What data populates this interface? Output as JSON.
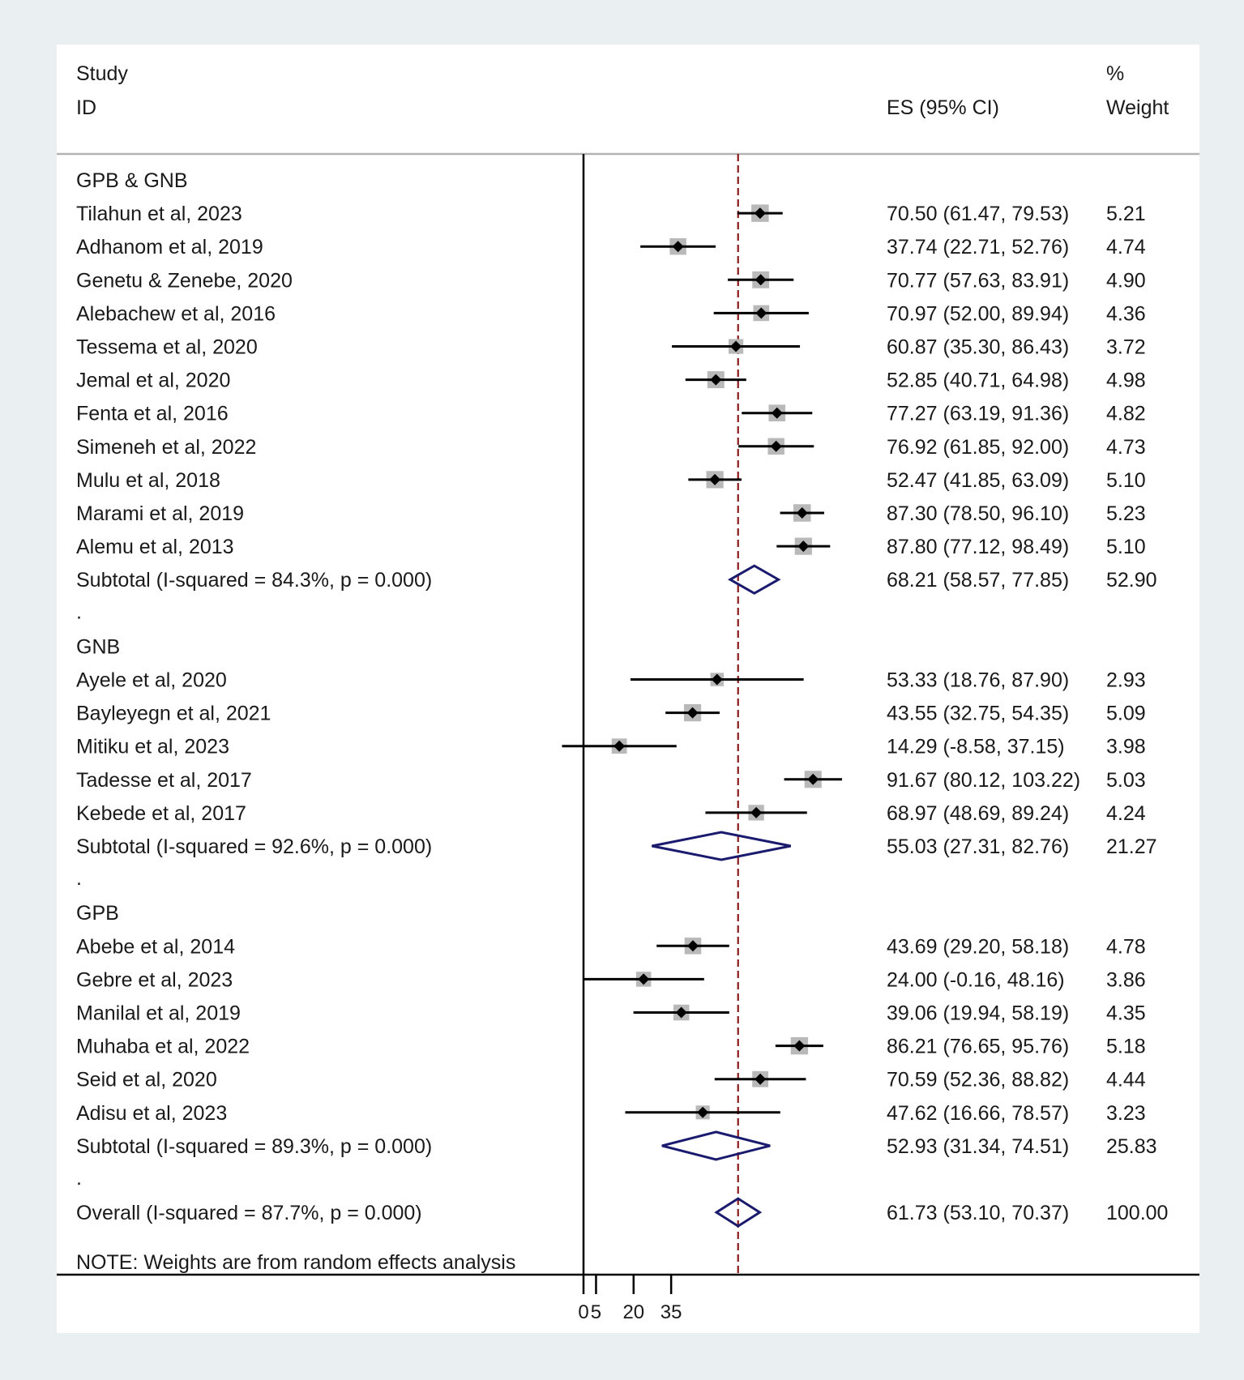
{
  "chart_data": {
    "type": "forest",
    "headers": {
      "study_line1": "Study",
      "study_line2": "ID",
      "es": "ES (95% CI)",
      "weight_line1": "%",
      "weight_line2": "Weight"
    },
    "x_ticks": [
      0,
      5,
      20,
      35
    ],
    "x_range": [
      0,
      100
    ],
    "overall_line": 61.73,
    "groups": [
      {
        "name": "GPB & GNB",
        "studies": [
          {
            "label": "Tilahun et al, 2023",
            "es": 70.5,
            "lo": 61.47,
            "hi": 79.53,
            "es_text": "70.50 (61.47, 79.53)",
            "weight": "5.21"
          },
          {
            "label": "Adhanom et al, 2019",
            "es": 37.74,
            "lo": 22.71,
            "hi": 52.76,
            "es_text": "37.74 (22.71, 52.76)",
            "weight": "4.74"
          },
          {
            "label": "Genetu & Zenebe, 2020",
            "es": 70.77,
            "lo": 57.63,
            "hi": 83.91,
            "es_text": "70.77 (57.63, 83.91)",
            "weight": "4.90"
          },
          {
            "label": "Alebachew et al, 2016",
            "es": 70.97,
            "lo": 52.0,
            "hi": 89.94,
            "es_text": "70.97 (52.00, 89.94)",
            "weight": "4.36"
          },
          {
            "label": "Tessema et al, 2020",
            "es": 60.87,
            "lo": 35.3,
            "hi": 86.43,
            "es_text": "60.87 (35.30, 86.43)",
            "weight": "3.72"
          },
          {
            "label": "Jemal et al, 2020",
            "es": 52.85,
            "lo": 40.71,
            "hi": 64.98,
            "es_text": "52.85 (40.71, 64.98)",
            "weight": "4.98"
          },
          {
            "label": "Fenta et al, 2016",
            "es": 77.27,
            "lo": 63.19,
            "hi": 91.36,
            "es_text": "77.27 (63.19, 91.36)",
            "weight": "4.82"
          },
          {
            "label": "Simeneh et al, 2022",
            "es": 76.92,
            "lo": 61.85,
            "hi": 92.0,
            "es_text": "76.92 (61.85, 92.00)",
            "weight": "4.73"
          },
          {
            "label": "Mulu et al, 2018",
            "es": 52.47,
            "lo": 41.85,
            "hi": 63.09,
            "es_text": "52.47 (41.85, 63.09)",
            "weight": "5.10"
          },
          {
            "label": "Marami et al, 2019",
            "es": 87.3,
            "lo": 78.5,
            "hi": 96.1,
            "es_text": "87.30 (78.50, 96.10)",
            "weight": "5.23"
          },
          {
            "label": "Alemu et al, 2013",
            "es": 87.8,
            "lo": 77.12,
            "hi": 98.49,
            "es_text": "87.80 (77.12, 98.49)",
            "weight": "5.10"
          }
        ],
        "subtotal": {
          "label": "Subtotal  (I-squared = 84.3%, p = 0.000)",
          "es": 68.21,
          "lo": 58.57,
          "hi": 77.85,
          "es_text": "68.21 (58.57, 77.85)",
          "weight": "52.90"
        }
      },
      {
        "name": "GNB",
        "studies": [
          {
            "label": "Ayele et al, 2020",
            "es": 53.33,
            "lo": 18.76,
            "hi": 87.9,
            "es_text": "53.33 (18.76, 87.90)",
            "weight": "2.93"
          },
          {
            "label": "Bayleyegn et al, 2021",
            "es": 43.55,
            "lo": 32.75,
            "hi": 54.35,
            "es_text": "43.55 (32.75, 54.35)",
            "weight": "5.09"
          },
          {
            "label": "Mitiku et al, 2023",
            "es": 14.29,
            "lo": -8.58,
            "hi": 37.15,
            "es_text": "14.29 (-8.58, 37.15)",
            "weight": "3.98"
          },
          {
            "label": "Tadesse et al, 2017",
            "es": 91.67,
            "lo": 80.12,
            "hi": 103.22,
            "es_text": "91.67 (80.12, 103.22)",
            "weight": "5.03"
          },
          {
            "label": "Kebede et al, 2017",
            "es": 68.97,
            "lo": 48.69,
            "hi": 89.24,
            "es_text": "68.97 (48.69, 89.24)",
            "weight": "4.24"
          }
        ],
        "subtotal": {
          "label": "Subtotal  (I-squared = 92.6%, p = 0.000)",
          "es": 55.03,
          "lo": 27.31,
          "hi": 82.76,
          "es_text": "55.03 (27.31, 82.76)",
          "weight": "21.27"
        }
      },
      {
        "name": "GPB",
        "studies": [
          {
            "label": "Abebe et al, 2014",
            "es": 43.69,
            "lo": 29.2,
            "hi": 58.18,
            "es_text": "43.69 (29.20, 58.18)",
            "weight": "4.78"
          },
          {
            "label": "Gebre et al, 2023",
            "es": 24.0,
            "lo": -0.16,
            "hi": 48.16,
            "es_text": "24.00 (-0.16, 48.16)",
            "weight": "3.86"
          },
          {
            "label": "Manilal et al, 2019",
            "es": 39.06,
            "lo": 19.94,
            "hi": 58.19,
            "es_text": "39.06 (19.94, 58.19)",
            "weight": "4.35"
          },
          {
            "label": "Muhaba et al, 2022",
            "es": 86.21,
            "lo": 76.65,
            "hi": 95.76,
            "es_text": "86.21 (76.65, 95.76)",
            "weight": "5.18"
          },
          {
            "label": "Seid et al, 2020",
            "es": 70.59,
            "lo": 52.36,
            "hi": 88.82,
            "es_text": "70.59 (52.36, 88.82)",
            "weight": "4.44"
          },
          {
            "label": "Adisu et al, 2023",
            "es": 47.62,
            "lo": 16.66,
            "hi": 78.57,
            "es_text": "47.62 (16.66, 78.57)",
            "weight": "3.23"
          }
        ],
        "subtotal": {
          "label": "Subtotal  (I-squared = 89.3%, p = 0.000)",
          "es": 52.93,
          "lo": 31.34,
          "hi": 74.51,
          "es_text": "52.93 (31.34, 74.51)",
          "weight": "25.83"
        }
      }
    ],
    "overall": {
      "label": "Overall  (I-squared = 87.7%, p = 0.000)",
      "es": 61.73,
      "lo": 53.1,
      "hi": 70.37,
      "es_text": "61.73 (53.10, 70.37)",
      "weight": "100.00"
    },
    "spacer_text": ".",
    "note": "NOTE: Weights are from random effects analysis"
  }
}
